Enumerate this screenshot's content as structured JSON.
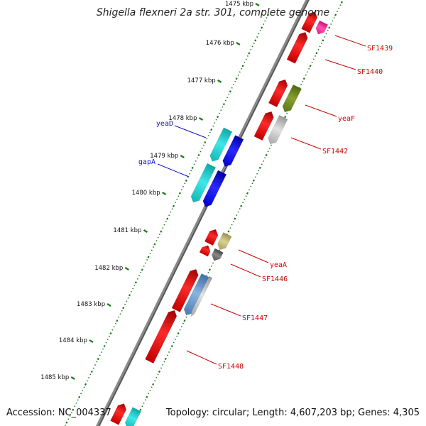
{
  "title": "Shigella flexneri 2a str. 301, complete genome",
  "accession_text": "Accession: NC_004337",
  "summary_text": "Topology: circular; Length: 4,607,203 bp; Genes: 4,305",
  "colors": {
    "backbone": "#8a8a8a",
    "ticks": "#1a7a1a",
    "forward_label": "#1010cc",
    "reverse_label": "#cc0000"
  },
  "kbp_ticks": [
    "1475 kbp",
    "1476 kbp",
    "1477 kbp",
    "1478 kbp",
    "1479 kbp",
    "1480 kbp",
    "1481 kbp",
    "1482 kbp",
    "1483 kbp",
    "1484 kbp",
    "1485 kbp"
  ],
  "gene_labels": [
    {
      "name": "SF1439",
      "strand": "reverse"
    },
    {
      "name": "SF1440",
      "strand": "reverse"
    },
    {
      "name": "yeaF",
      "strand": "reverse"
    },
    {
      "name": "SF1442",
      "strand": "reverse"
    },
    {
      "name": "yeaD",
      "strand": "forward"
    },
    {
      "name": "gapA",
      "strand": "forward"
    },
    {
      "name": "yeaA",
      "strand": "reverse"
    },
    {
      "name": "SF1446",
      "strand": "reverse"
    },
    {
      "name": "SF1447",
      "strand": "reverse"
    },
    {
      "name": "SF1448",
      "strand": "reverse"
    }
  ]
}
